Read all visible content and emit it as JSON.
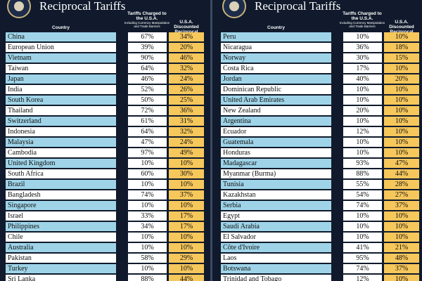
{
  "panels": [
    {
      "title": "Reciprocal Tariffs",
      "headers": {
        "country": "Country",
        "charged": "Tariffs Charged to the U.S.A.",
        "charged_note": "Including Currency Manipulation and Trade Barriers",
        "discounted": "U.S.A. Discounted Reciprocal Tariffs"
      },
      "rows": [
        [
          "China",
          "67%",
          "34%"
        ],
        [
          "European Union",
          "39%",
          "20%"
        ],
        [
          "Vietnam",
          "90%",
          "46%"
        ],
        [
          "Taiwan",
          "64%",
          "32%"
        ],
        [
          "Japan",
          "46%",
          "24%"
        ],
        [
          "India",
          "52%",
          "26%"
        ],
        [
          "South Korea",
          "50%",
          "25%"
        ],
        [
          "Thailand",
          "72%",
          "36%"
        ],
        [
          "Switzerland",
          "61%",
          "31%"
        ],
        [
          "Indonesia",
          "64%",
          "32%"
        ],
        [
          "Malaysia",
          "47%",
          "24%"
        ],
        [
          "Cambodia",
          "97%",
          "49%"
        ],
        [
          "United Kingdom",
          "10%",
          "10%"
        ],
        [
          "South Africa",
          "60%",
          "30%"
        ],
        [
          "Brazil",
          "10%",
          "10%"
        ],
        [
          "Bangladesh",
          "74%",
          "37%"
        ],
        [
          "Singapore",
          "10%",
          "10%"
        ],
        [
          "Israel",
          "33%",
          "17%"
        ],
        [
          "Philippines",
          "34%",
          "17%"
        ],
        [
          "Chile",
          "10%",
          "10%"
        ],
        [
          "Australia",
          "10%",
          "10%"
        ],
        [
          "Pakistan",
          "58%",
          "29%"
        ],
        [
          "Turkey",
          "10%",
          "10%"
        ],
        [
          "Sri Lanka",
          "88%",
          "44%"
        ]
      ]
    },
    {
      "title": "Reciprocal Tariffs",
      "headers": {
        "country": "Country",
        "charged": "Tariffs Charged to the U.S.A.",
        "charged_note": "Including Currency Manipulation and Trade Barriers",
        "discounted": "U.S.A. Discounted Reciprocal Tariffs"
      },
      "rows": [
        [
          "Peru",
          "10%",
          "10%"
        ],
        [
          "Nicaragua",
          "36%",
          "18%"
        ],
        [
          "Norway",
          "30%",
          "15%"
        ],
        [
          "Costa Rica",
          "17%",
          "10%"
        ],
        [
          "Jordan",
          "40%",
          "20%"
        ],
        [
          "Dominican Republic",
          "10%",
          "10%"
        ],
        [
          "United Arab Emirates",
          "10%",
          "10%"
        ],
        [
          "New Zealand",
          "20%",
          "10%"
        ],
        [
          "Argentina",
          "10%",
          "10%"
        ],
        [
          "Ecuador",
          "12%",
          "10%"
        ],
        [
          "Guatemala",
          "10%",
          "10%"
        ],
        [
          "Honduras",
          "10%",
          "10%"
        ],
        [
          "Madagascar",
          "93%",
          "47%"
        ],
        [
          "Myanmar (Burma)",
          "88%",
          "44%"
        ],
        [
          "Tunisia",
          "55%",
          "28%"
        ],
        [
          "Kazakhstan",
          "54%",
          "27%"
        ],
        [
          "Serbia",
          "74%",
          "37%"
        ],
        [
          "Egypt",
          "10%",
          "10%"
        ],
        [
          "Saudi Arabia",
          "10%",
          "10%"
        ],
        [
          "El Salvador",
          "10%",
          "10%"
        ],
        [
          "Côte d'Ivoire",
          "41%",
          "21%"
        ],
        [
          "Laos",
          "95%",
          "48%"
        ],
        [
          "Botswana",
          "74%",
          "37%"
        ],
        [
          "Trinidad and Tobago",
          "12%",
          "10%"
        ]
      ]
    }
  ]
}
